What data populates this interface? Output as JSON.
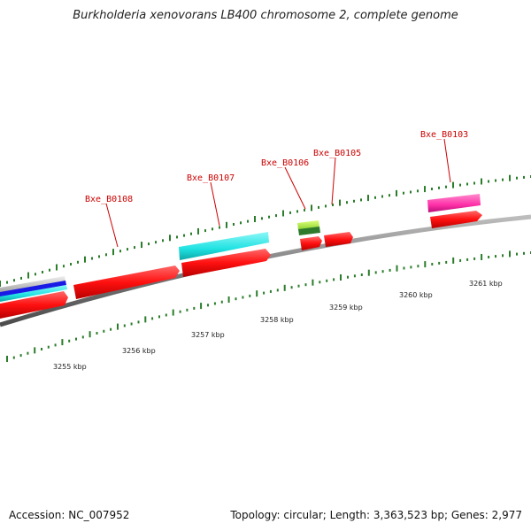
{
  "map": {
    "title": "Burkholderia xenovorans LB400 chromosome 2, complete genome",
    "accession_text": "Accession: NC_007952",
    "summary_text": "Topology: circular; Length: 3,363,523 bp; Genes: 2,977"
  },
  "colors": {
    "backbone": "#8c8c8c",
    "tick": "#2a7d2a",
    "label": "#cc0000",
    "leader": "#cc0000",
    "cds": "#ff1a1a",
    "cyan_feature": "#22e8e8",
    "magenta_feature": "#ff2fa8",
    "green_feature": "#a8e63a",
    "blue_feature": "#1a1ae6",
    "gray_feature": "#c8c8c8"
  },
  "gene_labels": [
    {
      "text": "Bxe_B0108"
    },
    {
      "text": "Bxe_B0107"
    },
    {
      "text": "Bxe_B0106"
    },
    {
      "text": "Bxe_B0105"
    },
    {
      "text": "Bxe_B0103"
    }
  ],
  "kbp_labels": [
    {
      "text": "3255 kbp"
    },
    {
      "text": "3256 kbp"
    },
    {
      "text": "3257 kbp"
    },
    {
      "text": "3258 kbp"
    },
    {
      "text": "3259 kbp"
    },
    {
      "text": "3260 kbp"
    },
    {
      "text": "3261 kbp"
    }
  ]
}
